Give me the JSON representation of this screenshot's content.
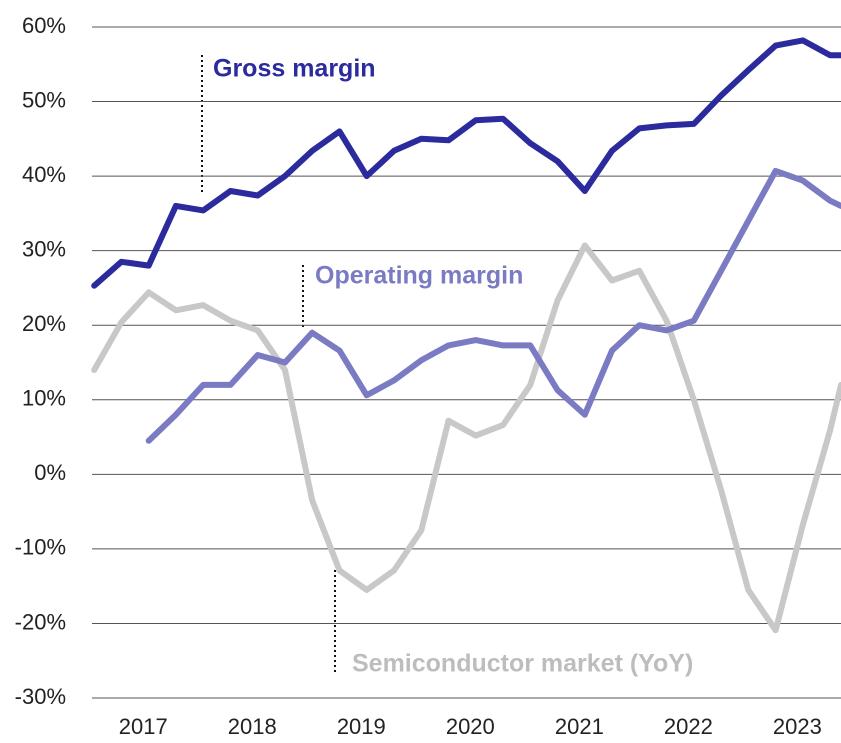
{
  "chart_data": {
    "type": "line",
    "x": [
      2016.55,
      2016.8,
      2017.05,
      2017.3,
      2017.55,
      2017.8,
      2018.05,
      2018.3,
      2018.55,
      2018.8,
      2019.05,
      2019.3,
      2019.55,
      2019.8,
      2020.05,
      2020.3,
      2020.55,
      2020.8,
      2021.05,
      2021.3,
      2021.55,
      2021.8,
      2022.05,
      2022.3,
      2022.55,
      2022.8,
      2023.05,
      2023.3,
      2023.4
    ],
    "series": [
      {
        "name": "Gross margin",
        "color": "#2b2b9e",
        "values": [
          25.3,
          28.5,
          28,
          36,
          35.4,
          38,
          37.4,
          40,
          43.4,
          46,
          40,
          43.4,
          45,
          44.8,
          47.5,
          47.7,
          44.4,
          42,
          38,
          43.4,
          46.4,
          46.8,
          47,
          50.8,
          54.2,
          57.5,
          58.2,
          56.2,
          56.2
        ]
      },
      {
        "name": "Operating margin",
        "color": "#7b7bc4",
        "values": [
          null,
          null,
          4.5,
          8,
          12,
          12,
          16,
          15,
          19,
          16.6,
          10.6,
          12.6,
          15.3,
          17.3,
          18,
          17.3,
          17.3,
          11.3,
          8,
          16.6,
          20,
          19.3,
          20.6,
          27.3,
          34,
          40.7,
          39.4,
          36.7,
          36
        ]
      },
      {
        "name": "Semiconductor market (YoY)",
        "color": "#c8c8c8",
        "values": [
          14,
          20.4,
          24.4,
          22,
          22.7,
          20.6,
          19.3,
          14,
          -3.5,
          -12.9,
          -15.5,
          -12.9,
          -7.5,
          7.2,
          5.2,
          6.6,
          12,
          23.3,
          30.7,
          26,
          27.3,
          20.6,
          10,
          -2.1,
          -15.5,
          -20.9,
          -6.8,
          5.9,
          12
        ]
      }
    ],
    "xlim": [
      2016.53,
      2023.4
    ],
    "xticks": [
      2017,
      2018,
      2019,
      2020,
      2021,
      2022,
      2023
    ],
    "ylim": [
      -30,
      60
    ],
    "yticks": [
      {
        "value": -30,
        "label": "-30%"
      },
      {
        "value": -20,
        "label": "-20%"
      },
      {
        "value": -10,
        "label": "-10%"
      },
      {
        "value": 0,
        "label": "0%"
      },
      {
        "value": 10,
        "label": "10%"
      },
      {
        "value": 20,
        "label": "20%"
      },
      {
        "value": 30,
        "label": "30%"
      },
      {
        "value": 40,
        "label": "40%"
      },
      {
        "value": 50,
        "label": "50%"
      },
      {
        "value": 60,
        "label": "60%"
      }
    ],
    "grid": true
  }
}
